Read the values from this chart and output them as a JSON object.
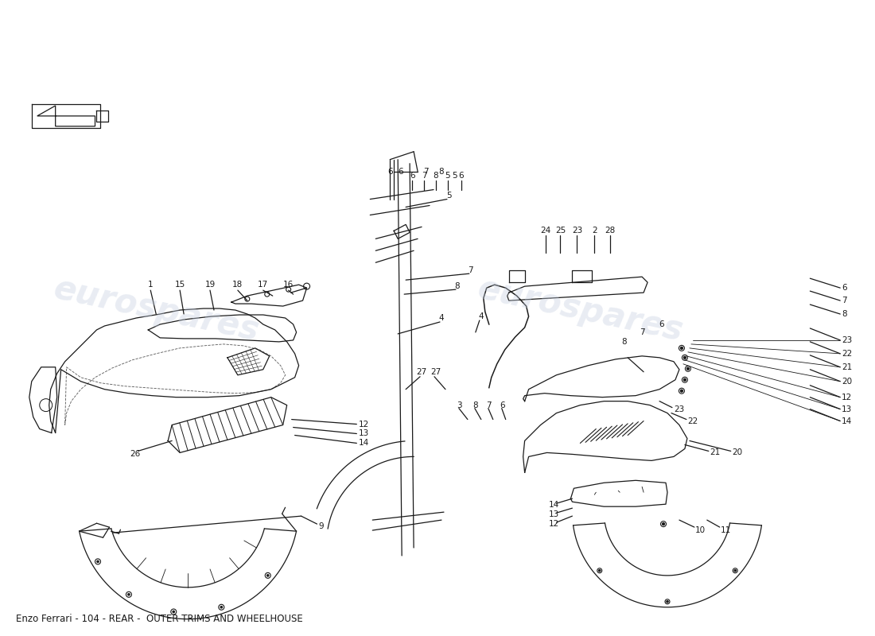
{
  "title": "Enzo Ferrari - 104 - REAR -  OUTER TRIMS AND WHEELHOUSE",
  "title_fontsize": 8.5,
  "title_color": "#000000",
  "background_color": "#ffffff",
  "watermark_text": "eurospares",
  "watermark_color": "#c5cfe0",
  "watermark_alpha": 0.38,
  "line_color": "#1a1a1a",
  "line_width": 0.9,
  "label_fontsize": 7.5,
  "label_fontweight": "normal"
}
